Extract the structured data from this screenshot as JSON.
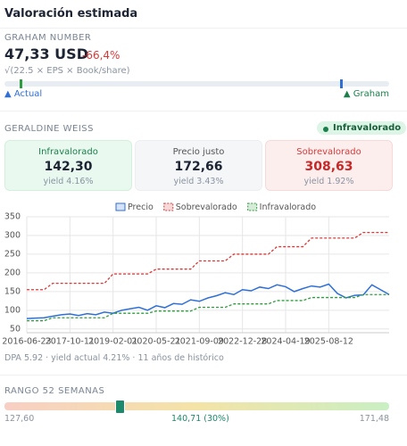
{
  "header": {
    "title": "Valoración estimada"
  },
  "graham": {
    "label": "GRAHAM NUMBER",
    "value": "47,33 USD",
    "change": "-66,4%",
    "formula": "√(22.5 × EPS × Book/share)",
    "left_label": "▲ Actual",
    "right_label": "▲ Graham"
  },
  "weiss": {
    "label": "GERALDINE WEISS",
    "badge": "Infravalorado",
    "boxes": [
      {
        "label": "Infravalorado",
        "value": "142,30",
        "yield": "yield 4.16%"
      },
      {
        "label": "Precio justo",
        "value": "172,66",
        "yield": "yield 3.43%"
      },
      {
        "label": "Sobrevalorado",
        "value": "308,63",
        "yield": "yield 1.92%"
      }
    ],
    "footer": "DPA 5.92 · yield actual 4.21% · 11 años de histórico"
  },
  "chart_data": {
    "type": "line",
    "categories": [
      "2016-06-23",
      null,
      null,
      null,
      null,
      "2017-10-11",
      null,
      null,
      null,
      null,
      "2019-02-01",
      null,
      null,
      null,
      null,
      "2020-05-21",
      null,
      null,
      null,
      null,
      "2021-09-09",
      null,
      null,
      null,
      null,
      "2022-12-28",
      null,
      null,
      null,
      null,
      "2024-04-19",
      null,
      null,
      null,
      null,
      "2025-08-12",
      null,
      null,
      null,
      null,
      null,
      null,
      null
    ],
    "series": [
      {
        "name": "Precio",
        "color": "#2f6fd6",
        "dashed": false,
        "values": [
          78,
          79,
          80,
          84,
          88,
          90,
          86,
          91,
          88,
          95,
          92,
          100,
          104,
          108,
          100,
          112,
          107,
          118,
          116,
          128,
          124,
          133,
          139,
          147,
          142,
          155,
          152,
          162,
          158,
          168,
          163,
          150,
          158,
          165,
          162,
          170,
          145,
          133,
          140,
          141,
          168,
          155,
          142
        ]
      },
      {
        "name": "Sobrevalorado",
        "color": "#d63b3b",
        "dashed": true,
        "values": [
          155,
          155,
          155,
          172,
          172,
          172,
          172,
          172,
          172,
          172,
          197,
          197,
          197,
          197,
          197,
          210,
          210,
          210,
          210,
          210,
          232,
          232,
          232,
          232,
          250,
          250,
          250,
          250,
          250,
          270,
          270,
          270,
          270,
          293,
          293,
          293,
          293,
          293,
          293,
          308,
          308,
          308,
          308
        ]
      },
      {
        "name": "Infravalorado",
        "color": "#2e9d3e",
        "dashed": true,
        "values": [
          72,
          72,
          72,
          80,
          80,
          80,
          80,
          80,
          80,
          80,
          92,
          92,
          92,
          92,
          92,
          98,
          98,
          98,
          98,
          98,
          108,
          108,
          108,
          108,
          117,
          117,
          117,
          117,
          117,
          126,
          126,
          126,
          126,
          134,
          134,
          134,
          134,
          134,
          134,
          142,
          142,
          142,
          142
        ]
      }
    ],
    "ylim": [
      40,
      350
    ],
    "yticks": [
      50,
      100,
      150,
      200,
      250,
      300,
      350
    ],
    "grid": true
  },
  "range": {
    "label": "RANGO 52 SEMANAS",
    "low": "127,60",
    "current": "140,71 (30%)",
    "high": "171,48"
  }
}
